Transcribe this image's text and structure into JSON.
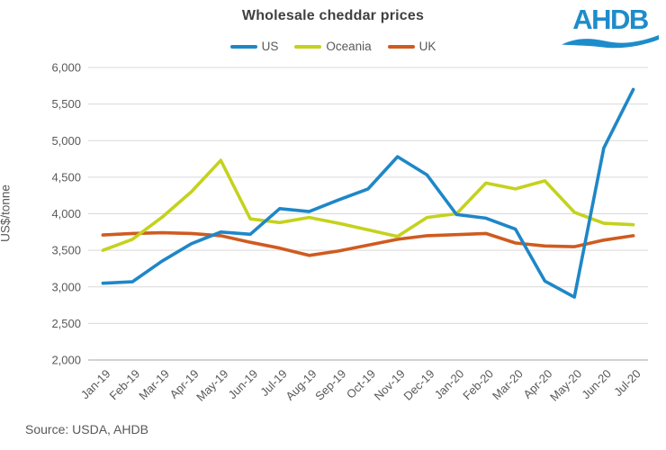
{
  "title": "Wholesale cheddar prices",
  "logo": {
    "text": "AHDB"
  },
  "source": "Source: USDA, AHDB",
  "colors": {
    "us_line": "#1e87c7",
    "oceania_line": "#c4d21c",
    "uk_line": "#cf5b20",
    "gridline": "#d9d9d9",
    "axis_line": "#a6a6a6",
    "tick_text": "#595959",
    "title_text": "#404040",
    "logo_blue": "#1e8cca"
  },
  "chart_data": {
    "type": "line",
    "title": "Wholesale cheddar prices",
    "xlabel": "",
    "ylabel": "US$/tonne",
    "ylim": [
      2000,
      6000
    ],
    "grid": true,
    "legend_position": "top-center",
    "categories": [
      "Jan-19",
      "Feb-19",
      "Mar-19",
      "Apr-19",
      "May-19",
      "Jun-19",
      "Jul-19",
      "Aug-19",
      "Sep-19",
      "Oct-19",
      "Nov-19",
      "Dec-19",
      "Jan-20",
      "Feb-20",
      "Mar-20",
      "Apr-20",
      "May-20",
      "Jun-20",
      "Jul-20"
    ],
    "y_ticks": [
      {
        "value": 6000,
        "label": "6,000"
      },
      {
        "value": 5500,
        "label": "5,500"
      },
      {
        "value": 5000,
        "label": "5,000"
      },
      {
        "value": 4500,
        "label": "4,500"
      },
      {
        "value": 4000,
        "label": "4,000"
      },
      {
        "value": 3500,
        "label": "3,500"
      },
      {
        "value": 3000,
        "label": "3,000"
      },
      {
        "value": 2500,
        "label": "2,500"
      },
      {
        "value": 2000,
        "label": "2,000"
      }
    ],
    "series": [
      {
        "name": "US",
        "color": "#1e87c7",
        "values": [
          3050,
          3070,
          3350,
          3590,
          3750,
          3720,
          4070,
          4030,
          4190,
          4340,
          4780,
          4530,
          3990,
          3940,
          3790,
          3080,
          2860,
          4900,
          5700
        ]
      },
      {
        "name": "Oceania",
        "color": "#c4d21c",
        "values": [
          3500,
          3650,
          3950,
          4300,
          4730,
          3930,
          3880,
          3950,
          3870,
          3780,
          3690,
          3950,
          4000,
          4420,
          4340,
          4450,
          4020,
          3870,
          3850
        ]
      },
      {
        "name": "UK",
        "color": "#cf5b20",
        "values": [
          3710,
          3730,
          3740,
          3730,
          3700,
          3610,
          3530,
          3430,
          3490,
          3570,
          3650,
          3700,
          3715,
          3730,
          3600,
          3560,
          3550,
          3640,
          3700
        ]
      }
    ]
  }
}
